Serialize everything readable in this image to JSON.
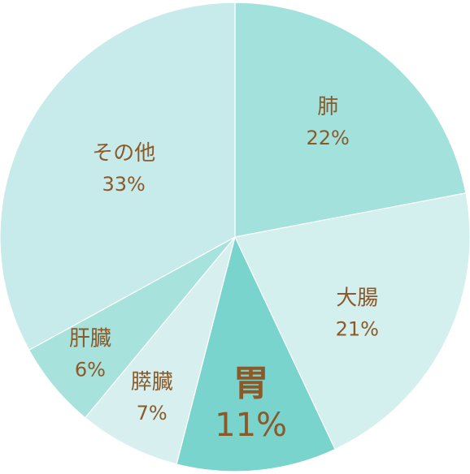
{
  "chart_data": {
    "type": "pie",
    "start_angle_deg": 0,
    "direction": "clockwise",
    "slices": [
      {
        "label": "肺",
        "value": 22,
        "value_label": "22%",
        "color": "#a3e2dc",
        "emphasized": false
      },
      {
        "label": "大腸",
        "value": 21,
        "value_label": "21%",
        "color": "#d3efee",
        "emphasized": false
      },
      {
        "label": "胃",
        "value": 11,
        "value_label": "11%",
        "color": "#78d4cc",
        "emphasized": true
      },
      {
        "label": "膵臓",
        "value": 7,
        "value_label": "7%",
        "color": "#d7f0ef",
        "emphasized": false
      },
      {
        "label": "肝臓",
        "value": 6,
        "value_label": "6%",
        "color": "#a7e2dd",
        "emphasized": false
      },
      {
        "label": "その他",
        "value": 33,
        "value_label": "33%",
        "color": "#c7ebea",
        "emphasized": false
      }
    ]
  }
}
